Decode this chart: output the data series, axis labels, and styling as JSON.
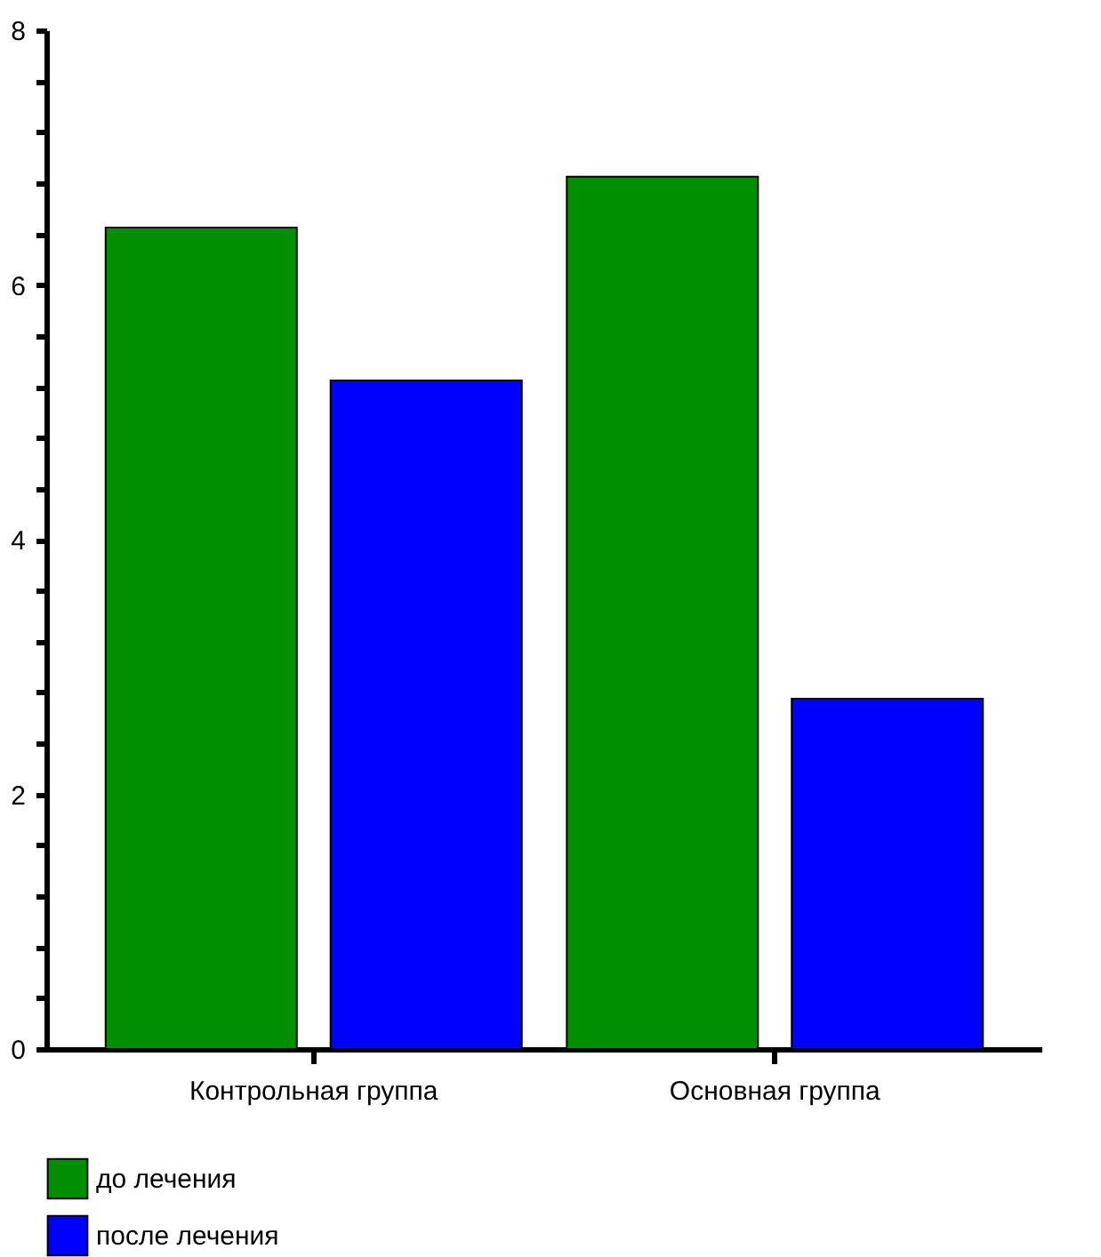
{
  "chart_data": {
    "type": "bar",
    "categories": [
      "Контрольная группа",
      "Основная группа"
    ],
    "series": [
      {
        "name": "до лечения",
        "color": "#008f00",
        "values": [
          6.45,
          6.85
        ]
      },
      {
        "name": "после лечения",
        "color": "#0000ff",
        "values": [
          5.25,
          2.75
        ]
      }
    ],
    "ylim": [
      0,
      8
    ],
    "yticks": [
      0,
      {
        "value": 0.4,
        "label": null
      },
      {
        "value": 0.8,
        "label": null
      },
      {
        "value": 1.2,
        "label": null
      },
      {
        "value": 1.6,
        "label": null
      },
      2,
      {
        "value": 2.4,
        "label": null
      },
      {
        "value": 2.8,
        "label": null
      },
      {
        "value": 3.2,
        "label": null
      },
      {
        "value": 3.6,
        "label": null
      },
      4,
      {
        "value": 4.4,
        "label": null
      },
      {
        "value": 4.8,
        "label": null
      },
      {
        "value": 5.2,
        "label": null
      },
      {
        "value": 5.6,
        "label": null
      },
      6,
      {
        "value": 6.4,
        "label": null
      },
      {
        "value": 6.8,
        "label": null
      },
      {
        "value": 7.2,
        "label": null
      },
      {
        "value": 7.6,
        "label": null
      },
      8
    ],
    "grid": false,
    "legend": "bottom"
  }
}
